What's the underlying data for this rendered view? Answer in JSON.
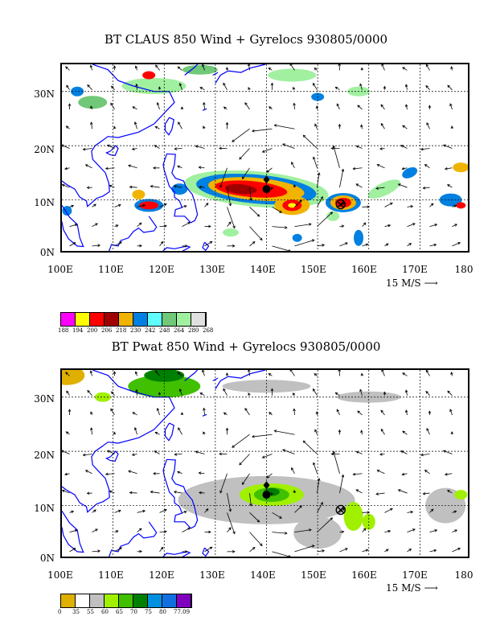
{
  "panel1": {
    "title": "BT CLAUS 850 Wind + Gyrelocs 930805/0000",
    "colorbar_colors": [
      "#ff00ff",
      "#ffff00",
      "#ff0000",
      "#a00000",
      "#f0b400",
      "#0080e0",
      "#60ffff",
      "#70c878",
      "#a0f0a0",
      "#e0e0e0"
    ],
    "colorbar_labels": [
      "188",
      "194",
      "200",
      "206",
      "218",
      "230",
      "242",
      "248",
      "264",
      "280",
      "268"
    ]
  },
  "panel2": {
    "title": "BT Pwat 850 Wind + Gyrelocs 930805/0000",
    "colorbar_colors": [
      "#e0b000",
      "#ffffff",
      "#c0c0c0",
      "#a0f000",
      "#40c000",
      "#008000",
      "#0090e0",
      "#1070e0",
      "#8000c0"
    ],
    "colorbar_labels": [
      "0",
      "35",
      "55",
      "60",
      "65",
      "70",
      "75",
      "80",
      "77.09"
    ]
  },
  "lat_labels": [
    "30N",
    "20N",
    "10N",
    "0N"
  ],
  "lon_labels": [
    "100E",
    "110E",
    "120E",
    "130E",
    "140E",
    "150E",
    "160E",
    "170E",
    "180"
  ],
  "ref_vector": "15 M/S"
}
